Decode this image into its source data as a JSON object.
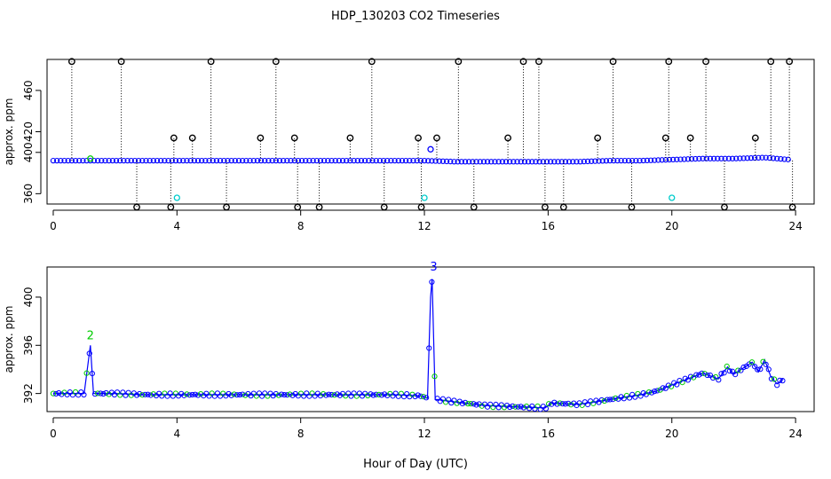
{
  "title": "HDP_130203  CO2 Timeseries",
  "xlabel": "Hour of Day (UTC)",
  "colors": {
    "axis": "#000000",
    "series_blue": "#0000ff",
    "series_green": "#00cc00",
    "series_cyan": "#00cccc",
    "outlier": "#000000"
  },
  "chart_data": [
    {
      "type": "scatter",
      "panel": "top",
      "ylabel": "approx. ppm",
      "xlim": [
        -0.2,
        24.6
      ],
      "ylim": [
        350,
        490
      ],
      "xticks": [
        0,
        4,
        8,
        12,
        16,
        20,
        24
      ],
      "yticks": [
        360,
        400,
        420,
        460
      ],
      "series": [
        {
          "x": [
            0.0,
            1.0,
            2.0,
            3.0,
            4.0,
            5.0,
            6.0,
            7.0,
            8.0,
            9.0,
            10.0,
            11.0,
            12.0,
            13.0,
            14.0,
            15.0,
            16.0,
            17.0,
            18.0,
            19.0,
            20.0,
            21.0,
            22.0,
            23.0,
            23.8
          ],
          "y": [
            392,
            392,
            392,
            392,
            392,
            392,
            392,
            392,
            392,
            392,
            392,
            392,
            392,
            391,
            391,
            391,
            391,
            391,
            392,
            392,
            393,
            394,
            394,
            395,
            393
          ]
        },
        {
          "x": [
            0.6,
            2.2,
            2.7,
            3.8,
            3.9,
            4.5,
            5.1,
            5.6,
            6.7,
            7.2,
            7.8,
            7.9,
            8.6,
            9.6,
            10.3,
            10.7,
            11.8,
            11.9,
            12.4,
            13.1,
            13.6,
            14.7,
            15.2,
            15.7,
            15.9,
            16.5,
            17.6,
            18.1,
            18.7,
            19.8,
            19.9,
            20.6,
            21.1,
            21.7,
            22.7,
            23.2,
            23.8,
            23.9
          ],
          "y": [
            488,
            488,
            347,
            347,
            414,
            414,
            488,
            347,
            414,
            488,
            414,
            347,
            347,
            414,
            488,
            347,
            414,
            347,
            414,
            488,
            347,
            414,
            488,
            488,
            347,
            347,
            414,
            488,
            347,
            414,
            488,
            414,
            488,
            347,
            414,
            488,
            488,
            347
          ]
        },
        {
          "x": [
            1.2,
            12.2
          ],
          "y": [
            394,
            403
          ]
        },
        {
          "x": [
            4.0,
            12.0,
            20.0
          ],
          "y": [
            356,
            356,
            356
          ]
        }
      ]
    },
    {
      "type": "line",
      "panel": "bottom",
      "ylabel": "approx. ppm",
      "xlim": [
        -0.2,
        24.6
      ],
      "ylim": [
        390.5,
        402.5
      ],
      "xticks": [
        0,
        4,
        8,
        12,
        16,
        20,
        24
      ],
      "yticks": [
        392,
        396,
        400
      ],
      "series": [
        {
          "x": [
            0.0,
            1.0,
            1.2,
            1.3,
            1.4,
            2.0,
            3.0,
            3.8,
            4.1,
            5.0,
            6.0,
            7.0,
            7.8,
            8.1,
            9.0,
            10.0,
            11.0,
            11.9,
            12.1,
            12.2,
            12.25,
            12.35,
            12.4,
            13.0,
            14.0,
            15.0,
            15.9,
            16.1,
            17.0,
            18.0,
            19.0,
            19.5,
            20.0,
            20.5,
            21.0,
            21.5,
            21.8,
            22.0,
            22.3,
            22.6,
            22.8,
            23.0,
            23.2,
            23.4,
            23.6
          ],
          "y": [
            392.0,
            392.0,
            396.0,
            392.0,
            392.0,
            392.0,
            391.9,
            391.9,
            391.9,
            391.9,
            391.9,
            391.9,
            391.9,
            391.9,
            391.9,
            391.9,
            391.9,
            391.8,
            391.6,
            400.0,
            401.5,
            391.5,
            391.5,
            391.3,
            391.0,
            390.9,
            390.8,
            391.2,
            391.1,
            391.5,
            391.9,
            392.2,
            392.7,
            393.2,
            393.7,
            393.2,
            394.2,
            393.6,
            394.1,
            394.6,
            393.8,
            394.8,
            393.4,
            392.8,
            393.2
          ]
        }
      ],
      "annotations": [
        {
          "x": 1.2,
          "y": 396.5,
          "text": "2"
        },
        {
          "x": 12.3,
          "y": 402.2,
          "text": "3"
        }
      ]
    }
  ]
}
